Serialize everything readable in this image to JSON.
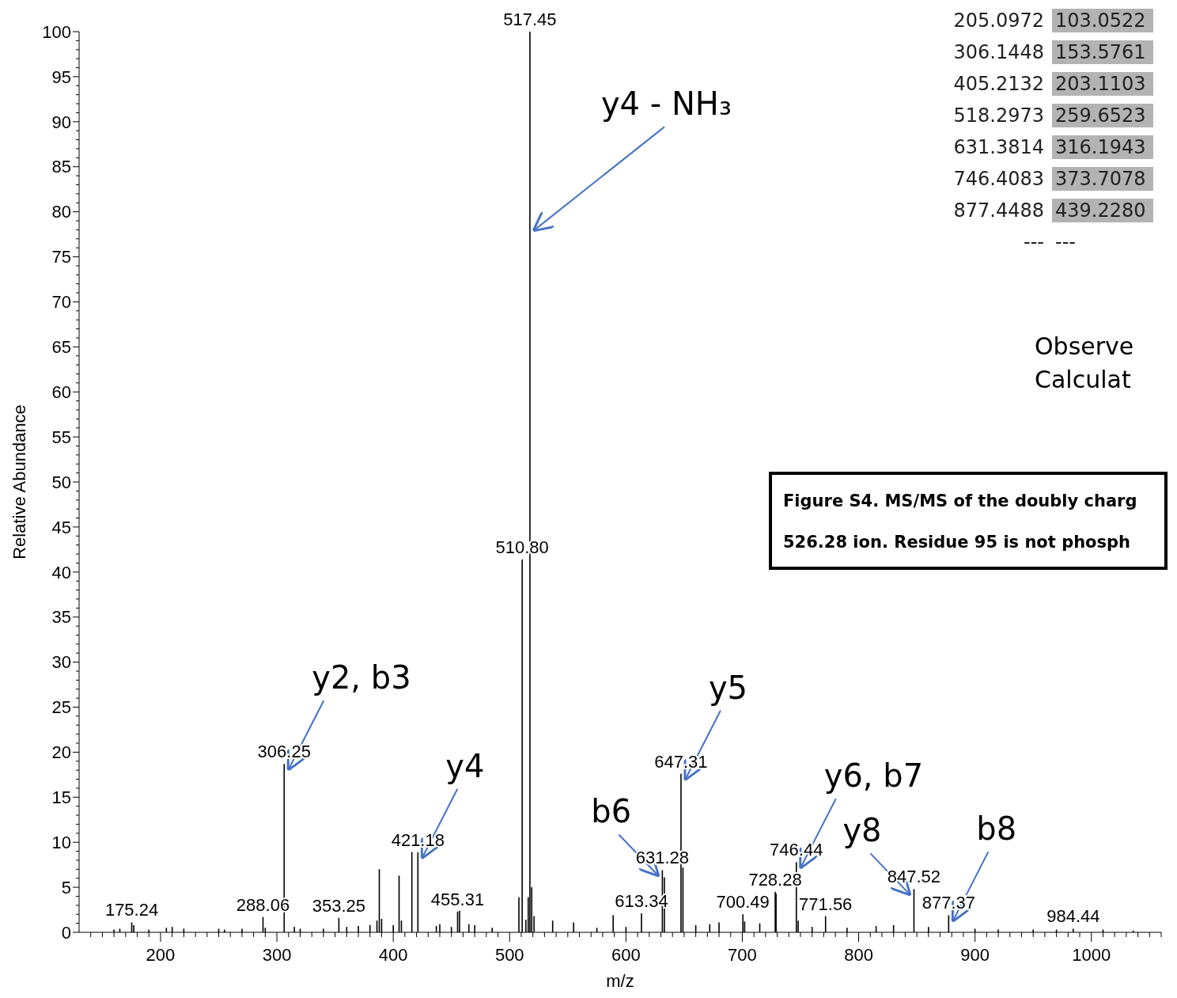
{
  "chart_data": {
    "type": "bar",
    "xlabel": "m/z",
    "ylabel": "Relative Abundance",
    "grid": false,
    "color": "#000000",
    "x": [
      160,
      165,
      175.24,
      177,
      190,
      205,
      210,
      220,
      250,
      255,
      270,
      288.06,
      290,
      306.25,
      315,
      320,
      340,
      353.25,
      360,
      370,
      380,
      386,
      388,
      390,
      400,
      405,
      407,
      416,
      421.18,
      437,
      440,
      450,
      455.31,
      457,
      465,
      470,
      485,
      508,
      510.8,
      514,
      516,
      517.45,
      519,
      521,
      537,
      555,
      575,
      589,
      600,
      613.34,
      631.28,
      633,
      647.31,
      649,
      660,
      672,
      680,
      700.49,
      702,
      715,
      728.28,
      729,
      746.44,
      748,
      760,
      771.56,
      790,
      815,
      830,
      847.52,
      860,
      877.37,
      900,
      920,
      950,
      970,
      984.44,
      1010,
      1036
    ],
    "values": [
      0.3,
      0.4,
      1.1,
      0.8,
      0.3,
      0.5,
      0.6,
      0.4,
      0.4,
      0.3,
      0.4,
      1.7,
      0.5,
      18.7,
      0.6,
      0.4,
      0.4,
      1.6,
      0.6,
      0.7,
      0.8,
      1.3,
      7,
      1.5,
      0.8,
      6.3,
      1.3,
      8.9,
      8.9,
      0.7,
      0.9,
      0.6,
      2.3,
      2.4,
      0.9,
      0.8,
      0.5,
      3.9,
      41.4,
      1.4,
      3.9,
      100,
      5,
      1.8,
      1.3,
      1.1,
      0.5,
      1.9,
      0.6,
      2.1,
      6.9,
      6.1,
      17.6,
      7.2,
      0.8,
      0.9,
      1.1,
      2,
      1.2,
      1,
      4.5,
      4.3,
      7.8,
      1.3,
      0.6,
      1.8,
      0.5,
      0.7,
      0.8,
      4.8,
      0.6,
      1.9,
      0.4,
      0.3,
      0.3,
      0.3,
      0.4,
      0.3,
      0.2
    ],
    "xlim": [
      130,
      1060
    ],
    "ylim": [
      0,
      100
    ],
    "xticks": [
      {
        "value": 140,
        "label": null
      },
      {
        "value": 150,
        "label": null
      },
      {
        "value": 160,
        "label": null
      },
      {
        "value": 170,
        "label": null
      },
      {
        "value": 180,
        "label": null
      },
      {
        "value": 190,
        "label": null
      },
      200,
      {
        "value": 210,
        "label": null
      },
      {
        "value": 220,
        "label": null
      },
      {
        "value": 230,
        "label": null
      },
      {
        "value": 240,
        "label": null
      },
      {
        "value": 250,
        "label": null
      },
      {
        "value": 260,
        "label": null
      },
      {
        "value": 270,
        "label": null
      },
      {
        "value": 280,
        "label": null
      },
      {
        "value": 290,
        "label": null
      },
      300,
      {
        "value": 310,
        "label": null
      },
      {
        "value": 320,
        "label": null
      },
      {
        "value": 330,
        "label": null
      },
      {
        "value": 340,
        "label": null
      },
      {
        "value": 350,
        "label": null
      },
      {
        "value": 360,
        "label": null
      },
      {
        "value": 370,
        "label": null
      },
      {
        "value": 380,
        "label": null
      },
      {
        "value": 390,
        "label": null
      },
      400,
      {
        "value": 410,
        "label": null
      },
      {
        "value": 420,
        "label": null
      },
      {
        "value": 430,
        "label": null
      },
      {
        "value": 440,
        "label": null
      },
      {
        "value": 450,
        "label": null
      },
      {
        "value": 460,
        "label": null
      },
      {
        "value": 470,
        "label": null
      },
      {
        "value": 480,
        "label": null
      },
      {
        "value": 490,
        "label": null
      },
      500,
      {
        "value": 510,
        "label": null
      },
      {
        "value": 520,
        "label": null
      },
      {
        "value": 530,
        "label": null
      },
      {
        "value": 540,
        "label": null
      },
      {
        "value": 550,
        "label": null
      },
      {
        "value": 560,
        "label": null
      },
      {
        "value": 570,
        "label": null
      },
      {
        "value": 580,
        "label": null
      },
      {
        "value": 590,
        "label": null
      },
      600,
      {
        "value": 610,
        "label": null
      },
      {
        "value": 620,
        "label": null
      },
      {
        "value": 630,
        "label": null
      },
      {
        "value": 640,
        "label": null
      },
      {
        "value": 650,
        "label": null
      },
      {
        "value": 660,
        "label": null
      },
      {
        "value": 670,
        "label": null
      },
      {
        "value": 680,
        "label": null
      },
      {
        "value": 690,
        "label": null
      },
      700,
      {
        "value": 710,
        "label": null
      },
      {
        "value": 720,
        "label": null
      },
      {
        "value": 730,
        "label": null
      },
      {
        "value": 740,
        "label": null
      },
      {
        "value": 750,
        "label": null
      },
      {
        "value": 760,
        "label": null
      },
      {
        "value": 770,
        "label": null
      },
      {
        "value": 780,
        "label": null
      },
      {
        "value": 790,
        "label": null
      },
      800,
      {
        "value": 810,
        "label": null
      },
      {
        "value": 820,
        "label": null
      },
      {
        "value": 830,
        "label": null
      },
      {
        "value": 840,
        "label": null
      },
      {
        "value": 850,
        "label": null
      },
      {
        "value": 860,
        "label": null
      },
      {
        "value": 870,
        "label": null
      },
      {
        "value": 880,
        "label": null
      },
      {
        "value": 890,
        "label": null
      },
      900,
      {
        "value": 910,
        "label": null
      },
      {
        "value": 920,
        "label": null
      },
      {
        "value": 930,
        "label": null
      },
      {
        "value": 940,
        "label": null
      },
      {
        "value": 950,
        "label": null
      },
      {
        "value": 960,
        "label": null
      },
      {
        "value": 970,
        "label": null
      },
      {
        "value": 980,
        "label": null
      },
      {
        "value": 990,
        "label": null
      },
      1000,
      {
        "value": 1010,
        "label": null
      },
      {
        "value": 1020,
        "label": null
      },
      {
        "value": 1030,
        "label": null
      },
      {
        "value": 1040,
        "label": null
      },
      {
        "value": 1050,
        "label": null
      },
      {
        "value": 1060,
        "label": null
      }
    ],
    "yticks": [
      0,
      5,
      10,
      15,
      20,
      25,
      30,
      35,
      40,
      45,
      50,
      55,
      60,
      65,
      70,
      75,
      80,
      85,
      90,
      95,
      100
    ],
    "annotations": [
      "y4 - NH₃",
      {
        "text": "y2, b3",
        "x": 306.25,
        "y": 18.7
      },
      {
        "text": "y4",
        "x": 421.18,
        "y": 8.9
      },
      {
        "text": "b6",
        "x": 631.28,
        "y": 6.9
      },
      {
        "text": "y5",
        "x": 647.31,
        "y": 17.6
      },
      {
        "text": "y6, b7",
        "x": 746.44,
        "y": 7.8
      },
      {
        "text": "y8",
        "x": 847.52,
        "y": 4.8
      },
      {
        "text": "b8",
        "x": 877.37,
        "y": 1.9
      },
      {
        "text": "175.24",
        "x": 175.24,
        "y": 1.1
      },
      {
        "text": "288.06",
        "x": 288.06,
        "y": 1.7
      },
      {
        "text": "306.25",
        "x": 306.25,
        "y": 18.7
      },
      {
        "text": "353.25",
        "x": 353.25,
        "y": 1.6
      },
      {
        "text": "421.18",
        "x": 421.18,
        "y": 8.9
      },
      {
        "text": "455.31",
        "x": 455.31,
        "y": 2.3
      },
      {
        "text": "510.80",
        "x": 510.8,
        "y": 41.4
      },
      {
        "text": "517.45",
        "x": 517.45,
        "y": 100
      },
      {
        "text": "613.34",
        "x": 613.34,
        "y": 2.1
      },
      {
        "text": "631.28",
        "x": 631.28,
        "y": 6.9
      },
      {
        "text": "647.31",
        "x": 647.31,
        "y": 17.6
      },
      {
        "text": "700.49",
        "x": 700.49,
        "y": 2
      },
      {
        "text": "728.28",
        "x": 728.28,
        "y": 4.5
      },
      {
        "text": "746.44",
        "x": 746.44,
        "y": 7.8
      },
      {
        "text": "771.56",
        "x": 771.56,
        "y": 1.8
      },
      {
        "text": "847.52",
        "x": 847.52,
        "y": 4.8
      },
      {
        "text": "877.37",
        "x": 877.37,
        "y": 1.9
      },
      {
        "text": "984.44",
        "x": 984.44,
        "y": 0.4
      },
      "205.0972",
      "103.0522",
      "306.1448",
      "153.5761",
      "405.2132",
      "203.1103",
      "518.2973",
      "259.6523",
      "631.3814",
      "316.1943",
      "746.4083",
      "373.7078",
      "877.4488",
      "439.2280",
      "---",
      "---",
      "Observe",
      "Calculat",
      "Figure S4. MS/MS of the doubly charg",
      "526.28 ion. Residue 95 is not phosph"
    ]
  }
}
